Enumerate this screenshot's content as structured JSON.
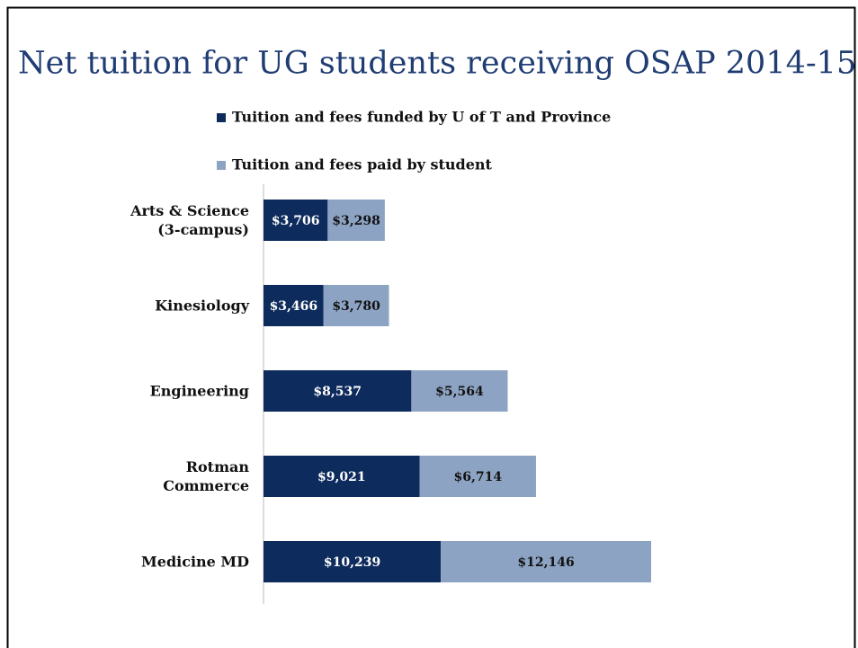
{
  "chart_data": {
    "type": "stacked-bar-horizontal",
    "title": "Net tuition for UG students receiving OSAP 2014-15",
    "categories": [
      "Arts & Science\n(3-campus)",
      "Kinesiology",
      "Engineering",
      "Rotman\nCommerce",
      "Medicine MD"
    ],
    "series": [
      {
        "name": "Tuition and fees funded by U of T and Province",
        "color": "#0d2b5c",
        "values": [
          3706,
          3466,
          8537,
          9021,
          10239
        ],
        "value_labels": [
          "$3,706",
          "$3,466",
          "$8,537",
          "$9,021",
          "$10,239"
        ]
      },
      {
        "name": "Tuition and fees paid by student",
        "color": "#8da3c3",
        "values": [
          3298,
          3780,
          5564,
          6714,
          12146
        ],
        "value_labels": [
          "$3,298",
          "$3,780",
          "$5,564",
          "$6,714",
          "$12,146"
        ]
      }
    ]
  }
}
